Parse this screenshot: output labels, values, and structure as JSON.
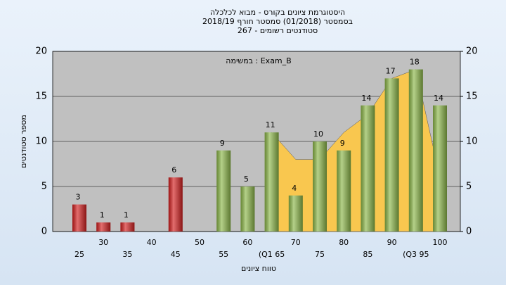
{
  "chart_data": {
    "type": "bar",
    "title": [
      "היסטוגרמת ציונים בקורס - מבוא לכלכלה",
      "בסמסטר  (01/2018)  סמסטר חורף 2018/19",
      "סטודנטים רשומים - 267"
    ],
    "annotation": "במשימה : Exam_B",
    "x_label": "טווח ציונים",
    "y_label": "מספר סטודנטים",
    "categories": [
      "25",
      "30",
      "35",
      "40",
      "45",
      "50",
      "55",
      "60",
      "(Q1 65",
      "70",
      "75",
      "80",
      "85",
      "90",
      "(Q3 95",
      "100"
    ],
    "values": [
      3,
      1,
      1,
      0,
      6,
      0,
      9,
      5,
      11,
      4,
      10,
      9,
      14,
      17,
      18,
      14
    ],
    "colors": [
      "#d42020",
      "#d42020",
      "#d42020",
      "#d42020",
      "#d42020",
      "#d42020",
      "#8db84a",
      "#8db84a",
      "#8db84a",
      "#8db84a",
      "#8db84a",
      "#8db84a",
      "#8db84a",
      "#8db84a",
      "#8db84a",
      "#8db84a"
    ],
    "area": {
      "color": "#f9c74f",
      "values": [
        null,
        null,
        null,
        null,
        null,
        null,
        null,
        null,
        11,
        8,
        8,
        11,
        13,
        17,
        18,
        6
      ]
    },
    "ylim": [
      0,
      20
    ],
    "yticks": [
      0,
      5,
      10,
      15,
      20
    ],
    "y2lim": [
      0,
      20
    ],
    "y2ticks": [
      0,
      5,
      10,
      15,
      20
    ],
    "grid": true
  }
}
